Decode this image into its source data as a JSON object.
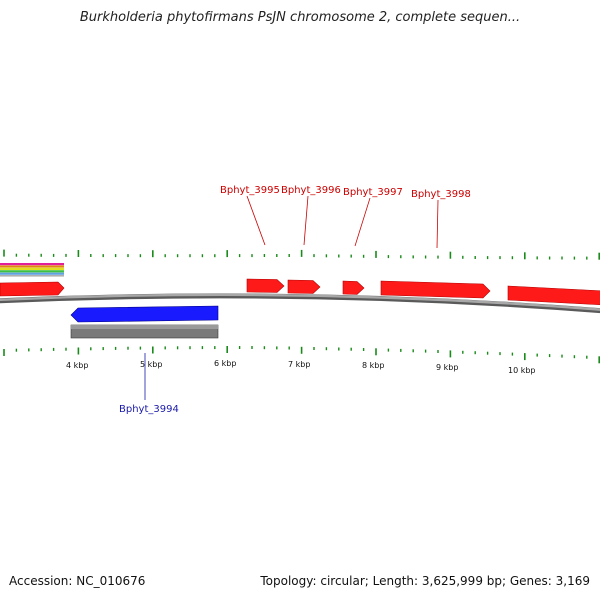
{
  "title": "Burkholderia phytofirmans PsJN chromosome 2, complete sequen...",
  "accession_label": "Accession: NC_010676",
  "summary_label": "Topology: circular; Length: 3,625,999 bp; Genes: 3,169",
  "colors": {
    "forward_gene": "#ff0000",
    "reverse_gene": "#1a1aff",
    "backbone": "#8a8a8a",
    "tick": "#1a8a1a",
    "forward_label": "#cc0000",
    "reverse_label": "#1a1aaa"
  },
  "scale_labels": [
    {
      "kbp": 4,
      "text": "4 kbp"
    },
    {
      "kbp": 5,
      "text": "5 kbp"
    },
    {
      "kbp": 6,
      "text": "6 kbp"
    },
    {
      "kbp": 7,
      "text": "7 kbp"
    },
    {
      "kbp": 8,
      "text": "8 kbp"
    },
    {
      "kbp": 9,
      "text": "9 kbp"
    },
    {
      "kbp": 10,
      "text": "10 kbp"
    }
  ],
  "genes": [
    {
      "name": "Bphyt_3995",
      "strand": "forward",
      "labeled": true
    },
    {
      "name": "Bphyt_3996",
      "strand": "forward",
      "labeled": true
    },
    {
      "name": "Bphyt_3997",
      "strand": "forward",
      "labeled": true
    },
    {
      "name": "Bphyt_3998",
      "strand": "forward",
      "labeled": true
    },
    {
      "name": "Bphyt_3994",
      "strand": "reverse",
      "labeled": true
    }
  ]
}
